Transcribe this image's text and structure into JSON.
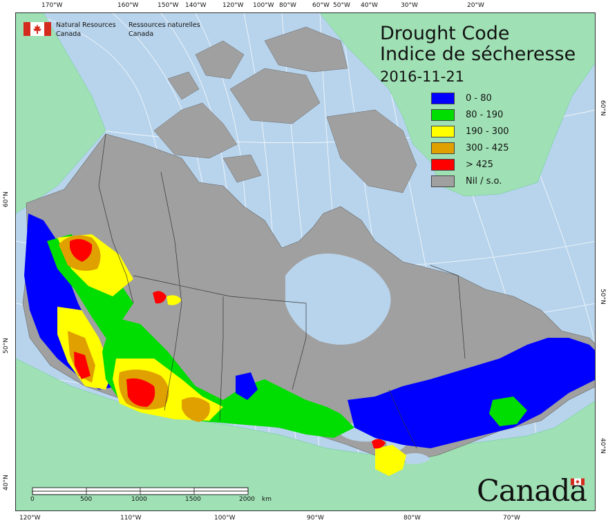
{
  "agency": {
    "name_en_line1": "Natural Resources",
    "name_en_line2": "Canada",
    "name_fr_line1": "Ressources naturelles",
    "name_fr_line2": "Canada"
  },
  "title": {
    "en": "Drought Code",
    "fr": "Indice de sécheresse",
    "date": "2016-11-21"
  },
  "legend": [
    {
      "label": "0 - 80",
      "color": "#0000ff"
    },
    {
      "label": "80 - 190",
      "color": "#00dd00"
    },
    {
      "label": "190 - 300",
      "color": "#ffff00"
    },
    {
      "label": "300 - 425",
      "color": "#e0a000"
    },
    {
      "label": "> 425",
      "color": "#ff0000"
    },
    {
      "label": "Nil / s.o.",
      "color": "#a0a0a0"
    }
  ],
  "colors": {
    "water": "#b8d4ec",
    "foreign_land": "#9fe0b4",
    "nil": "#a0a0a0",
    "graticule": "#ffffff",
    "border": "#333333"
  },
  "ticks": {
    "top": [
      "170°W",
      "160°W",
      "150°W",
      "140°W",
      "120°W",
      "100°W",
      "80°W",
      "60°W",
      "50°W",
      "40°W",
      "30°W",
      "20°W"
    ],
    "bottom": [
      "120°W",
      "110°W",
      "100°W",
      "90°W",
      "80°W",
      "70°W"
    ],
    "left": [
      "60°N",
      "50°N",
      "40°N"
    ],
    "right": [
      "60°N",
      "50°N",
      "40°N"
    ]
  },
  "scale": {
    "labels": [
      "0",
      "500",
      "1000",
      "1500",
      "2000"
    ],
    "units": "km"
  },
  "wordmark": "Canada"
}
